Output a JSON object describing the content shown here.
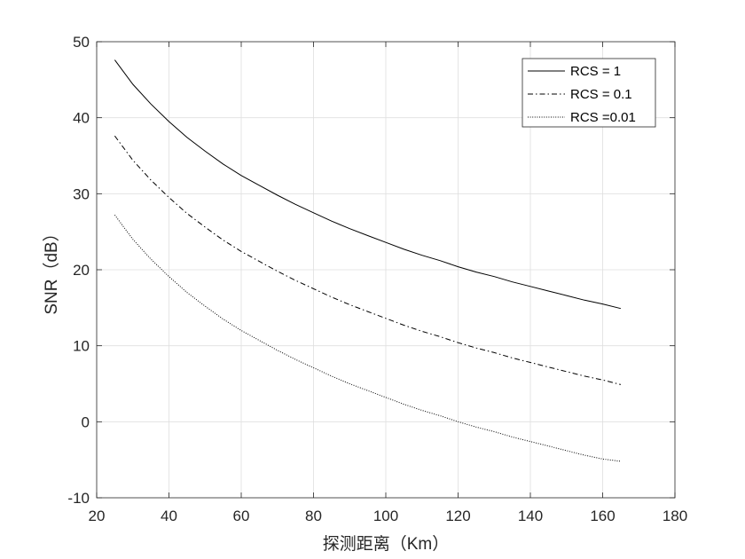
{
  "chart_data": {
    "type": "line",
    "xlabel": "探测距离（Km）",
    "ylabel": "SNR（dB）",
    "xlim": [
      20,
      180
    ],
    "ylim": [
      -10,
      50
    ],
    "xticks": [
      20,
      40,
      60,
      80,
      100,
      120,
      140,
      160,
      180
    ],
    "yticks": [
      -10,
      0,
      10,
      20,
      30,
      40,
      50
    ],
    "grid": true,
    "legend_position": "top-right",
    "x": [
      25,
      30,
      35,
      40,
      45,
      50,
      55,
      60,
      65,
      70,
      75,
      80,
      85,
      90,
      95,
      100,
      105,
      110,
      115,
      120,
      125,
      130,
      135,
      140,
      145,
      150,
      155,
      160,
      165
    ],
    "series": [
      {
        "name": "RCS = 1",
        "style": "solid",
        "values": [
          47.6,
          44.4,
          41.8,
          39.5,
          37.4,
          35.6,
          33.9,
          32.4,
          31.1,
          29.8,
          28.6,
          27.5,
          26.4,
          25.4,
          24.5,
          23.6,
          22.7,
          21.9,
          21.2,
          20.4,
          19.7,
          19.1,
          18.4,
          17.8,
          17.2,
          16.6,
          16.0,
          15.5,
          14.9
        ]
      },
      {
        "name": "RCS = 0.1",
        "style": "dashdot",
        "values": [
          37.6,
          34.4,
          31.8,
          29.5,
          27.4,
          25.6,
          23.9,
          22.4,
          21.1,
          19.8,
          18.6,
          17.5,
          16.4,
          15.4,
          14.5,
          13.6,
          12.7,
          11.9,
          11.2,
          10.4,
          9.7,
          9.1,
          8.4,
          7.8,
          7.2,
          6.6,
          6.0,
          5.5,
          4.9
        ]
      },
      {
        "name": "RCS =0.01",
        "style": "dotted",
        "values": [
          27.2,
          24.0,
          21.4,
          19.1,
          17.0,
          15.2,
          13.5,
          12.0,
          10.7,
          9.4,
          8.2,
          7.1,
          6.0,
          5.0,
          4.1,
          3.2,
          2.3,
          1.5,
          0.8,
          0.0,
          -0.7,
          -1.3,
          -2.0,
          -2.6,
          -3.2,
          -3.8,
          -4.4,
          -4.9,
          -5.2
        ]
      }
    ]
  }
}
